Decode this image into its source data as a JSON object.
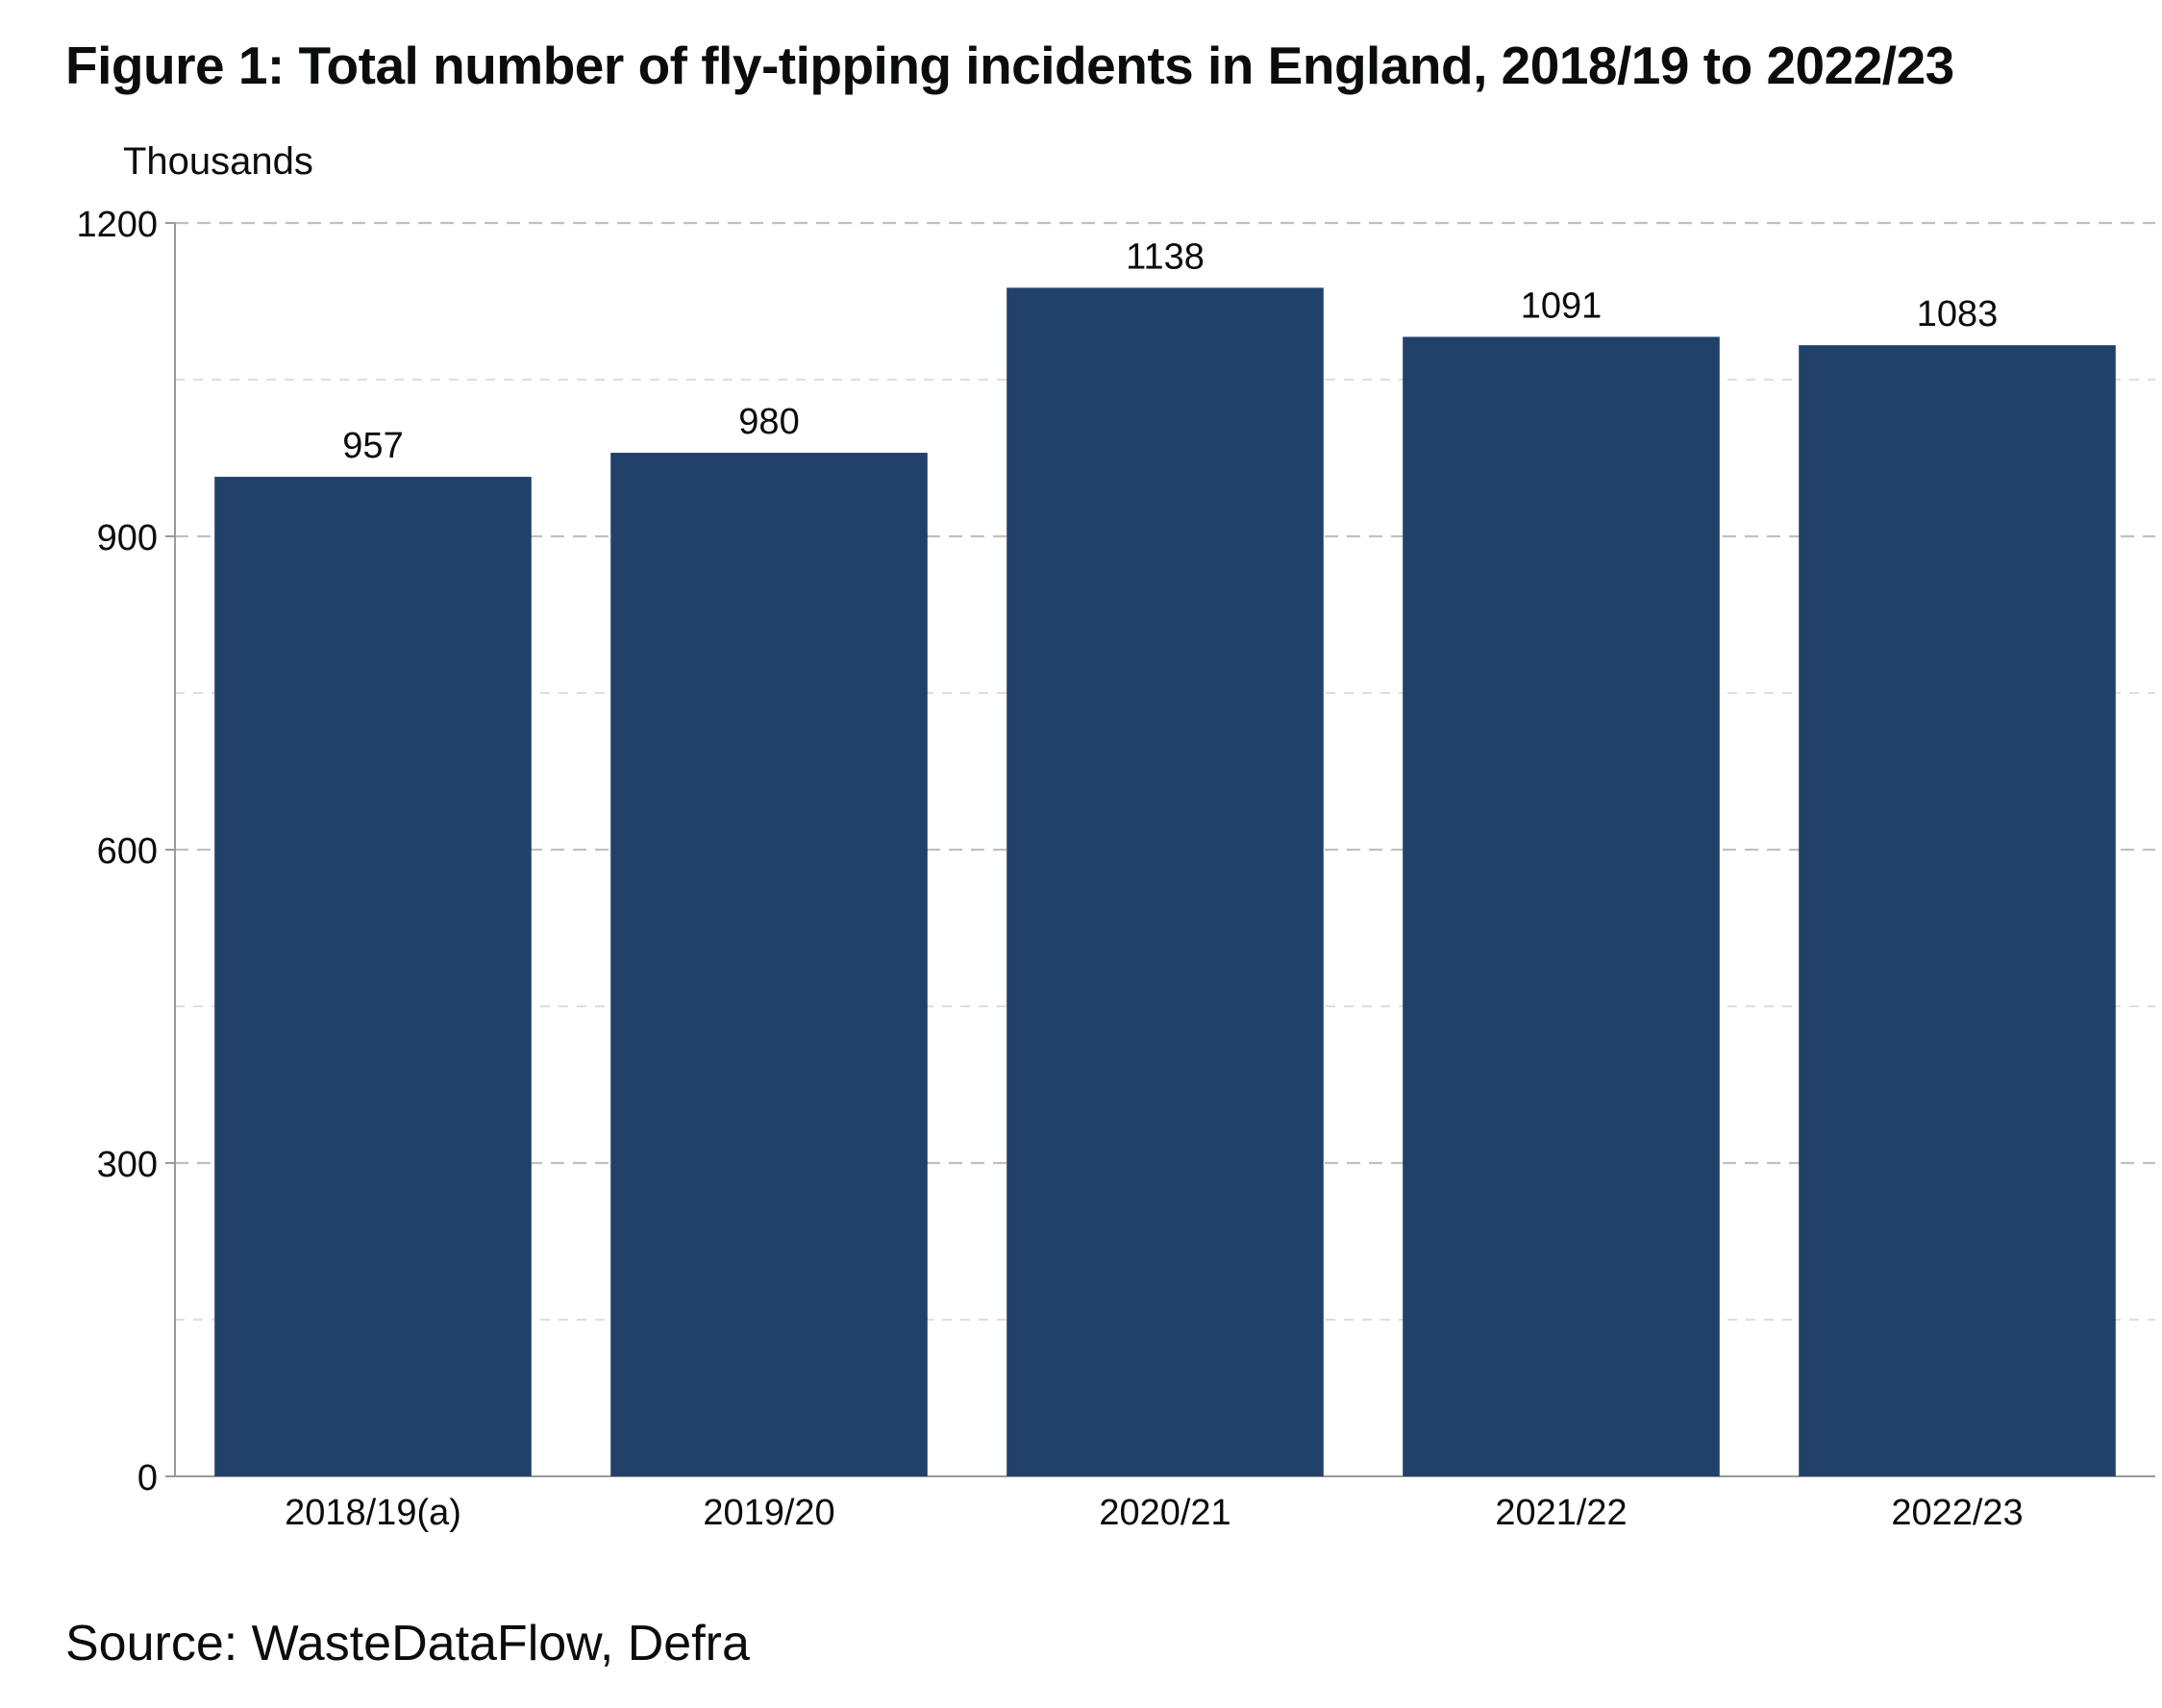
{
  "title": "Figure 1: Total number of fly-tipping incidents in England, 2018/19 to 2022/23",
  "source": "Source: WasteDataFlow, Defra",
  "colors": {
    "bar": "#22416a",
    "gridline": "#bdbdbd",
    "axis": "#9a9a9a"
  },
  "chart_data": {
    "type": "bar",
    "title": "Figure 1: Total number of fly-tipping incidents in England, 2018/19 to 2022/23",
    "ylabel": "Thousands",
    "xlabel": "",
    "categories": [
      "2018/19(a)",
      "2019/20",
      "2020/21",
      "2021/22",
      "2022/23"
    ],
    "values": [
      957,
      980,
      1138,
      1091,
      1083
    ],
    "value_labels": [
      "957",
      "980",
      "1138",
      "1091",
      "1083"
    ],
    "ylim": [
      0,
      1200
    ],
    "yticks": [
      0,
      300,
      600,
      900,
      1200
    ],
    "ytick_labels": [
      "0",
      "300",
      "600",
      "900",
      "1200"
    ],
    "minor_grid": [
      150,
      450,
      750,
      1050
    ],
    "grid": true,
    "legend": "none"
  }
}
